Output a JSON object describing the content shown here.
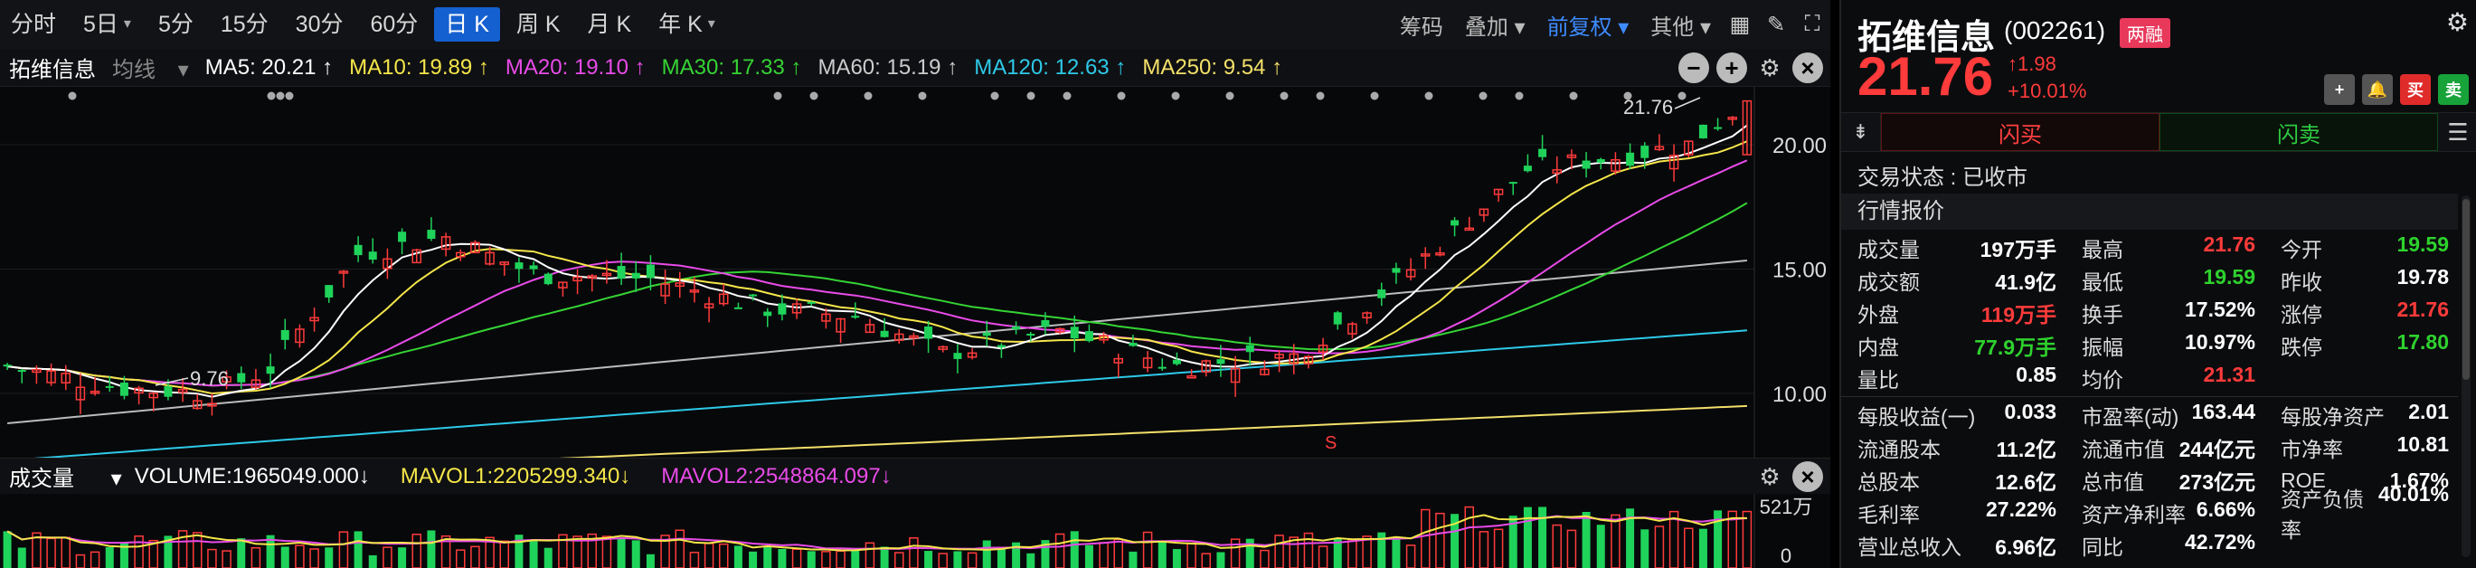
{
  "periods": [
    {
      "label": "分时",
      "dd": false,
      "active": false
    },
    {
      "label": "5日",
      "dd": true,
      "active": false
    },
    {
      "label": "5分",
      "dd": false,
      "active": false
    },
    {
      "label": "15分",
      "dd": false,
      "active": false
    },
    {
      "label": "30分",
      "dd": false,
      "active": false
    },
    {
      "label": "60分",
      "dd": false,
      "active": false
    },
    {
      "label": "日 K",
      "dd": false,
      "active": true
    },
    {
      "label": "周 K",
      "dd": false,
      "active": false
    },
    {
      "label": "月 K",
      "dd": false,
      "active": false
    },
    {
      "label": "年 K",
      "dd": true,
      "active": false
    }
  ],
  "toolbar_right": {
    "chips": "筹码",
    "overlay": "叠加",
    "adjust": "前复权",
    "other": "其他"
  },
  "ma_bar": {
    "title": "拓维信息",
    "type": "均线",
    "items": [
      {
        "text": "MA5: 20.21 ↑",
        "color": "#ffffff"
      },
      {
        "text": "MA10: 19.89 ↑",
        "color": "#f5e64a"
      },
      {
        "text": "MA20: 19.10 ↑",
        "color": "#e94be9"
      },
      {
        "text": "MA30: 17.33 ↑",
        "color": "#35d435"
      },
      {
        "text": "MA60: 15.19 ↑",
        "color": "#cccccc"
      },
      {
        "text": "MA120: 12.63 ↑",
        "color": "#2ec9e8"
      },
      {
        "text": "MA250: 9.54 ↑",
        "color": "#f3e06a"
      }
    ]
  },
  "kchart_labels": {
    "y_ticks": [
      "20.00",
      "15.00",
      "10.00"
    ],
    "high_label": "21.76",
    "low_label": "9.76",
    "signal": "S"
  },
  "vol_bar": {
    "title": "成交量",
    "volume": "VOLUME:1965049.000↓",
    "mavol1": "MAVOL1:2205299.340↓",
    "mavol2": "MAVOL2:2548864.097↓",
    "y_top": "521万",
    "y_bottom": "0"
  },
  "colors": {
    "up": "#ff3b3b",
    "down": "#1fd35a",
    "ma5": "#ffffff",
    "ma10": "#f5e64a",
    "ma20": "#e94be9",
    "ma30": "#35d435",
    "ma60": "#bbbbbb",
    "ma120": "#2ec9e8",
    "ma250": "#f3e06a"
  },
  "quote": {
    "name": "拓维信息",
    "code": "(002261)",
    "margin_badge": "两融",
    "price": "21.76",
    "change": "↑1.98",
    "change_pct": "+10.01%",
    "buy": "闪买",
    "sell": "闪卖",
    "trade_status": "交易状态 : 已收市",
    "section_title": "行情报价",
    "rows1": [
      [
        [
          "成交量",
          "197万手",
          ""
        ],
        [
          "最高",
          "21.76",
          "red"
        ],
        [
          "今开",
          "19.59",
          "green"
        ]
      ],
      [
        [
          "成交额",
          "41.9亿",
          ""
        ],
        [
          "最低",
          "19.59",
          "green"
        ],
        [
          "昨收",
          "19.78",
          ""
        ]
      ],
      [
        [
          "外盘",
          "119万手",
          "red"
        ],
        [
          "换手",
          "17.52%",
          ""
        ],
        [
          "涨停",
          "21.76",
          "red"
        ]
      ],
      [
        [
          "内盘",
          "77.9万手",
          "green"
        ],
        [
          "振幅",
          "10.97%",
          ""
        ],
        [
          "跌停",
          "17.80",
          "green"
        ]
      ],
      [
        [
          "量比",
          "0.85",
          ""
        ],
        [
          "均价",
          "21.31",
          "red"
        ],
        [
          "",
          "",
          ""
        ]
      ]
    ],
    "rows2": [
      [
        [
          "每股收益(一)",
          "0.033",
          ""
        ],
        [
          "市盈率(动)",
          "163.44",
          ""
        ],
        [
          "每股净资产",
          "2.01",
          ""
        ]
      ],
      [
        [
          "流通股本",
          "11.2亿",
          ""
        ],
        [
          "流通市值",
          "244亿元",
          ""
        ],
        [
          "市净率",
          "10.81",
          ""
        ]
      ],
      [
        [
          "总股本",
          "12.6亿",
          ""
        ],
        [
          "总市值",
          "273亿元",
          ""
        ],
        [
          "ROE",
          "1.67%",
          ""
        ]
      ],
      [
        [
          "毛利率",
          "27.22%",
          ""
        ],
        [
          "资产净利率",
          "6.66%",
          ""
        ],
        [
          "资产负债率",
          "40.01%",
          ""
        ]
      ],
      [
        [
          "营业总收入",
          "6.96亿",
          ""
        ],
        [
          "同比",
          "42.72%",
          ""
        ],
        [
          "",
          "",
          ""
        ]
      ]
    ]
  }
}
